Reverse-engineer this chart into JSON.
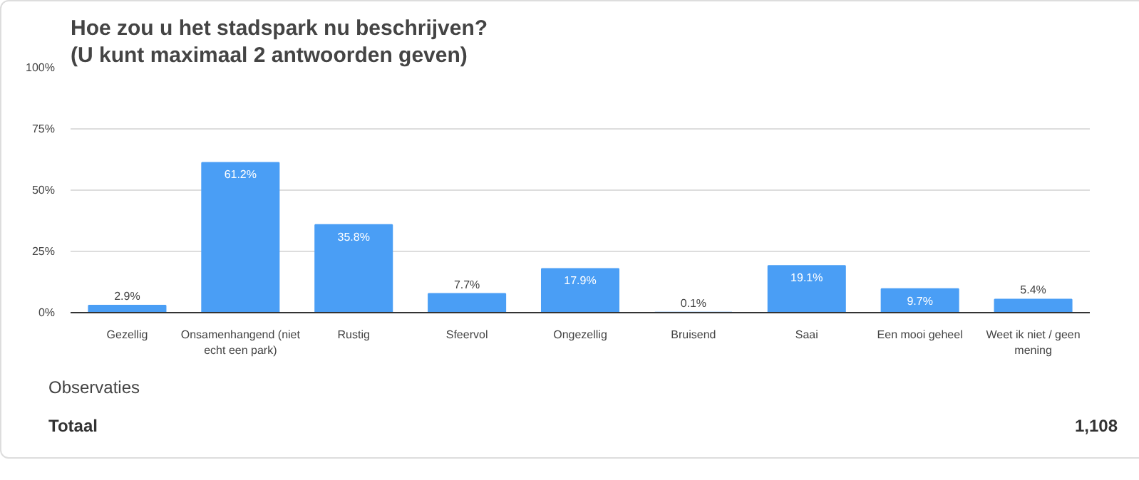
{
  "chart_data": {
    "type": "bar",
    "title": "Hoe zou u het stadspark nu beschrijven?",
    "subtitle": "(U kunt maximaal 2 antwoorden geven)",
    "categories": [
      "Gezellig",
      "Onsamenhangend (niet echt een park)",
      "Rustig",
      "Sfeervol",
      "Ongezellig",
      "Bruisend",
      "Saai",
      "Een mooi geheel",
      "Weet ik niet / geen mening"
    ],
    "values": [
      2.9,
      61.2,
      35.8,
      7.7,
      17.9,
      0.1,
      19.1,
      9.7,
      5.4
    ],
    "value_labels": [
      "2.9%",
      "61.2%",
      "35.8%",
      "7.7%",
      "17.9%",
      "0.1%",
      "19.1%",
      "9.7%",
      "5.4%"
    ],
    "color": "#4a9ef5",
    "ylim": [
      0,
      100
    ],
    "yticks": [
      {
        "value": 0,
        "label": "0%"
      },
      {
        "value": 25,
        "label": "25%"
      },
      {
        "value": 50,
        "label": "50%"
      },
      {
        "value": 75,
        "label": "75%"
      },
      {
        "value": 100,
        "label": "100%"
      }
    ],
    "grid": "y",
    "annotations": [
      "Observaties",
      "Totaal",
      "1,108"
    ]
  }
}
